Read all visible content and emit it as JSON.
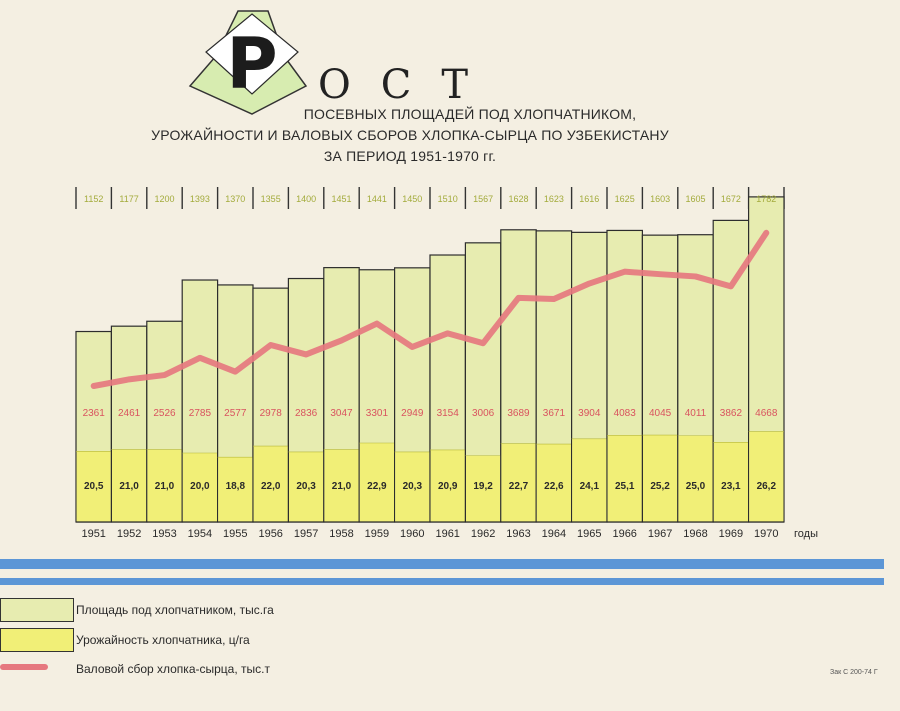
{
  "title": {
    "big_letter": "Р",
    "rest": "ОСТ",
    "subtitle_lines": [
      "ПОСЕВНЫХ ПЛОЩАДЕЙ ПОД ХЛОПЧАТНИКОМ,",
      "УРОЖАЙНОСТИ И ВАЛОВЫХ СБОРОВ ХЛОПКА-СЫРЦА ПО УЗБЕКИСТАНУ",
      "ЗА ПЕРИОД 1951-1970 гг."
    ]
  },
  "chart_data": {
    "type": "bar",
    "categories": [
      "1951",
      "1952",
      "1953",
      "1954",
      "1955",
      "1956",
      "1957",
      "1958",
      "1959",
      "1960",
      "1961",
      "1962",
      "1963",
      "1964",
      "1965",
      "1966",
      "1967",
      "1968",
      "1969",
      "1970"
    ],
    "x_unit_label": "годы",
    "series": [
      {
        "name": "Площадь под хлопчатником, тыс.га",
        "values": [
          1152,
          1177,
          1200,
          1393,
          1370,
          1355,
          1400,
          1451,
          1441,
          1450,
          1510,
          1567,
          1628,
          1623,
          1616,
          1625,
          1603,
          1605,
          1672,
          1782
        ],
        "labels": [
          "1152",
          "1177",
          "1200",
          "1393",
          "1370",
          "1355",
          "1400",
          "1451",
          "1441",
          "1450",
          "1510",
          "1567",
          "1628",
          "1623",
          "1616",
          "1625",
          "1603",
          "1605",
          "1672",
          "1782"
        ],
        "color": "#e7ecb0"
      },
      {
        "name": "Урожайность хлопчатника, ц/га",
        "values": [
          20.5,
          21.0,
          21.0,
          20.0,
          18.8,
          22.0,
          20.3,
          21.0,
          22.9,
          20.3,
          20.9,
          19.2,
          22.7,
          22.6,
          24.1,
          25.1,
          25.2,
          25.0,
          23.1,
          26.2
        ],
        "labels": [
          "20,5",
          "21,0",
          "21,0",
          "20,0",
          "18,8",
          "22,0",
          "20,3",
          "21,0",
          "22,9",
          "20,3",
          "20,9",
          "19,2",
          "22,7",
          "22,6",
          "24,1",
          "25,1",
          "25,2",
          "25,0",
          "23,1",
          "26,2"
        ],
        "color": "#f1ef77"
      },
      {
        "name": "Валовой сбор хлопка-сырца, тыс.т",
        "values": [
          2361,
          2461,
          2526,
          2785,
          2577,
          2978,
          2836,
          3047,
          3301,
          2949,
          3154,
          3006,
          3689,
          3671,
          3904,
          4083,
          4045,
          4011,
          3862,
          4668
        ],
        "labels": [
          "2361",
          "2461",
          "2526",
          "2785",
          "2577",
          "2978",
          "2836",
          "3047",
          "3301",
          "2949",
          "3154",
          "3006",
          "3689",
          "3671",
          "3904",
          "4083",
          "4045",
          "4011",
          "3862",
          "4668"
        ],
        "color": "#e6787f"
      }
    ]
  },
  "legend": {
    "items": [
      {
        "label": "Площадь под хлопчатником, тыс.га"
      },
      {
        "label": "Урожайность хлопчатника, ц/га"
      },
      {
        "label": "Валовой сбор хлопка-сырца, тыс.т"
      }
    ]
  },
  "footer_code": "Зак С 200-74 Г",
  "colors": {
    "area": "#e7ecb0",
    "yield": "#f1ef77",
    "harvest": "#e6787f",
    "area_label": "#a3ab3c",
    "harvest_label": "#d9535f",
    "stripe_blue": "#5c96d6",
    "logo_green": "#d7ecb0"
  },
  "icons": {
    "logo": "down-arrow-with-letter-icon"
  }
}
